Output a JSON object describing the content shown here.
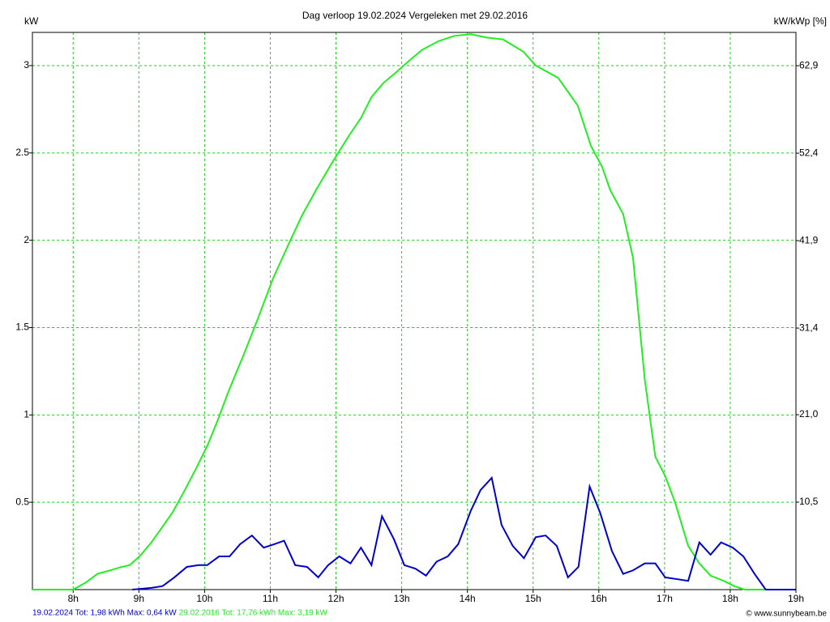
{
  "chart_data": {
    "type": "line",
    "title": "Dag  verloop 19.02.2024   Vergeleken met 29.02.2016",
    "y_label": "kW",
    "y2_label": "kW/kWp [%]",
    "footer": "© www.sunnybeam.be",
    "xlim": [
      7.38,
      19
    ],
    "xticks": [
      {
        "value": 8,
        "label": "8h"
      },
      {
        "value": 9,
        "label": "9h"
      },
      {
        "value": 10,
        "label": "10h"
      },
      {
        "value": 11,
        "label": "11h"
      },
      {
        "value": 12,
        "label": "12h"
      },
      {
        "value": 13,
        "label": "13h"
      },
      {
        "value": 14,
        "label": "14h"
      },
      {
        "value": 15,
        "label": "15h"
      },
      {
        "value": 16,
        "label": "16h"
      },
      {
        "value": 17,
        "label": "17h"
      },
      {
        "value": 18,
        "label": "18h"
      },
      {
        "value": 19,
        "label": "19h"
      }
    ],
    "ylim": [
      0,
      3.19
    ],
    "yticks": [
      0.5,
      1,
      1.5,
      2,
      2.5,
      3
    ],
    "y2lim": [
      0,
      66.9
    ],
    "y2ticks": [
      {
        "value": 10.5,
        "label": "10,5"
      },
      {
        "value": 21.0,
        "label": "21,0"
      },
      {
        "value": 31.4,
        "label": "31,4"
      },
      {
        "value": 41.9,
        "label": "41,9"
      },
      {
        "value": 52.4,
        "label": "52,4"
      },
      {
        "value": 62.9,
        "label": "62,9"
      }
    ],
    "grid": true,
    "grid_color": "#22cc22",
    "series": [
      {
        "name": "29.02.2016 Tot: 17,76 kWh Max: 3,19 kW",
        "color": "#22ee22",
        "x": [
          7.38,
          8.0,
          8.19,
          8.37,
          8.56,
          8.74,
          8.86,
          9.01,
          9.19,
          9.36,
          9.51,
          9.7,
          9.88,
          10.05,
          10.2,
          10.37,
          10.59,
          10.81,
          11.04,
          11.27,
          11.48,
          11.7,
          11.95,
          12.2,
          12.38,
          12.54,
          12.72,
          12.91,
          13.12,
          13.31,
          13.56,
          13.8,
          14.05,
          14.3,
          14.54,
          14.85,
          15.04,
          15.38,
          15.68,
          15.88,
          16.05,
          16.17,
          16.37,
          16.52,
          16.7,
          16.86,
          17.01,
          17.16,
          17.36,
          17.53,
          17.7,
          17.9,
          18.06,
          18.22,
          19
        ],
        "values": [
          0,
          0,
          0.04,
          0.09,
          0.11,
          0.13,
          0.14,
          0.19,
          0.27,
          0.36,
          0.44,
          0.57,
          0.7,
          0.83,
          0.97,
          1.14,
          1.34,
          1.55,
          1.78,
          1.97,
          2.14,
          2.29,
          2.45,
          2.6,
          2.7,
          2.82,
          2.9,
          2.96,
          3.03,
          3.09,
          3.14,
          3.17,
          3.18,
          3.16,
          3.15,
          3.08,
          3.0,
          2.93,
          2.77,
          2.54,
          2.42,
          2.29,
          2.15,
          1.9,
          1.2,
          0.76,
          0.65,
          0.5,
          0.25,
          0.15,
          0.08,
          0.05,
          0.02,
          0,
          0
        ]
      },
      {
        "name": "19.02.2024 Tot: 1,98 kWh Max: 0,64 kW",
        "color": "#0000cc",
        "x": [
          8.9,
          9.19,
          9.36,
          9.54,
          9.73,
          9.91,
          10.04,
          10.22,
          10.38,
          10.54,
          10.72,
          10.9,
          11.06,
          11.21,
          11.38,
          11.56,
          11.73,
          11.88,
          12.05,
          12.22,
          12.38,
          12.54,
          12.7,
          12.88,
          13.04,
          13.21,
          13.37,
          13.53,
          13.7,
          13.86,
          14.05,
          14.2,
          14.37,
          14.52,
          14.69,
          14.86,
          15.04,
          15.19,
          15.36,
          15.53,
          15.69,
          15.86,
          16.02,
          16.2,
          16.37,
          16.52,
          16.7,
          16.86,
          17.01,
          17.19,
          17.36,
          17.53,
          17.7,
          17.86,
          18.04,
          18.2,
          18.37,
          18.54,
          19
        ],
        "values": [
          0,
          0.01,
          0.02,
          0.07,
          0.13,
          0.14,
          0.14,
          0.19,
          0.19,
          0.26,
          0.31,
          0.24,
          0.26,
          0.28,
          0.14,
          0.13,
          0.07,
          0.14,
          0.19,
          0.15,
          0.24,
          0.14,
          0.42,
          0.29,
          0.14,
          0.12,
          0.08,
          0.16,
          0.19,
          0.26,
          0.45,
          0.57,
          0.64,
          0.37,
          0.25,
          0.18,
          0.3,
          0.31,
          0.25,
          0.07,
          0.13,
          0.59,
          0.44,
          0.22,
          0.09,
          0.11,
          0.15,
          0.15,
          0.07,
          0.06,
          0.05,
          0.27,
          0.2,
          0.27,
          0.24,
          0.19,
          0.09,
          0,
          0
        ]
      }
    ]
  }
}
